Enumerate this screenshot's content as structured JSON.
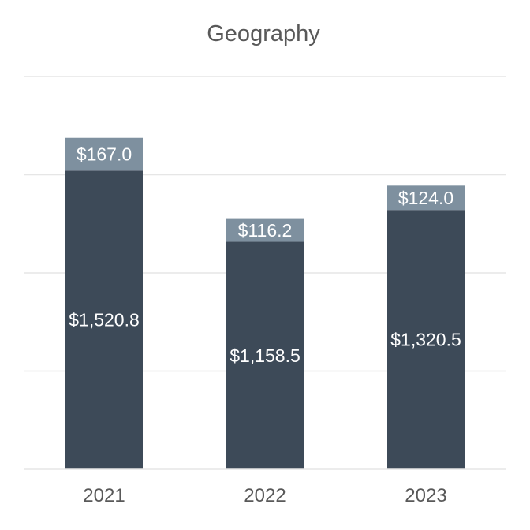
{
  "chart_data": {
    "type": "bar",
    "stacked": true,
    "title": "Geography",
    "xlabel": "",
    "ylabel": "",
    "categories": [
      "2021",
      "2022",
      "2023"
    ],
    "series": [
      {
        "values": [
          1520.8,
          1158.5,
          1320.5
        ],
        "labels": [
          "$1,520.8",
          "$1,158.5",
          "$1,320.5"
        ],
        "color": "#3d4a58"
      },
      {
        "values": [
          167.0,
          116.2,
          124.0
        ],
        "labels": [
          "$167.0",
          "$116.2",
          "$124.0"
        ],
        "color": "#7e909f"
      }
    ],
    "ylim": [
      0,
      2000
    ],
    "grid": true,
    "legend": "none"
  }
}
